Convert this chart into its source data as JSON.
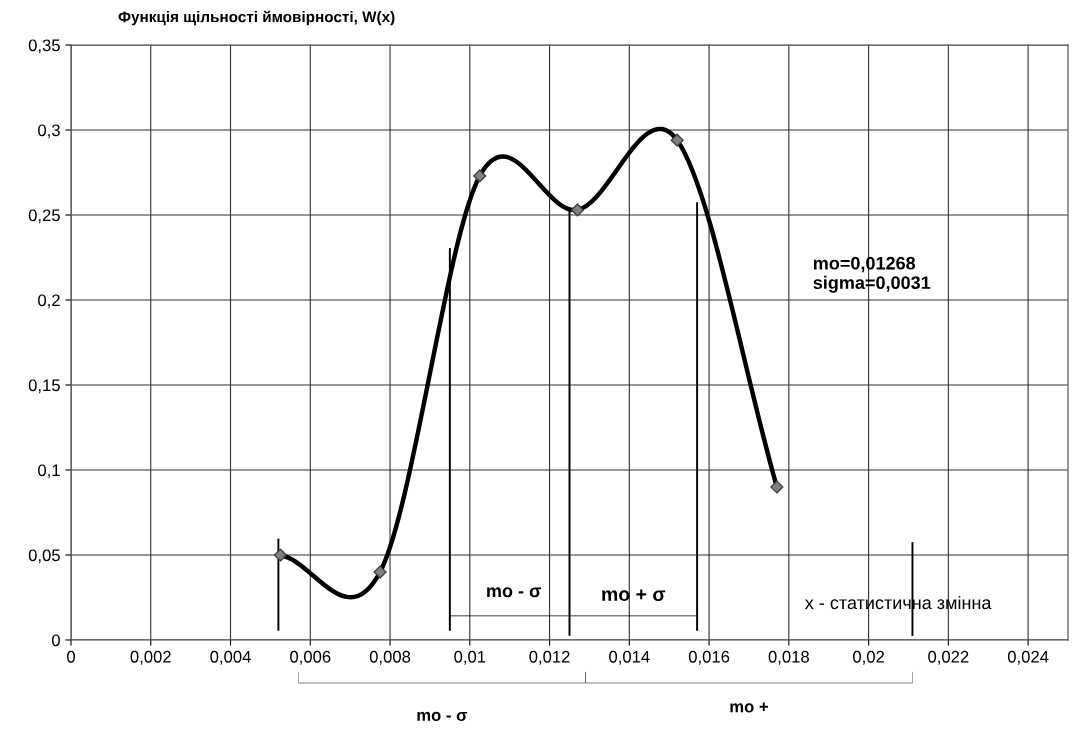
{
  "chart_data": {
    "type": "line",
    "title": "Функція щільності ймовірності, W(x)",
    "xlim": [
      0,
      0.025
    ],
    "ylim": [
      0,
      0.35
    ],
    "xticks": [
      0,
      {
        "value": 0.002,
        "label": "0,002"
      },
      {
        "value": 0.004,
        "label": "0,004"
      },
      {
        "value": 0.006,
        "label": "0,006"
      },
      {
        "value": 0.008,
        "label": "0,008"
      },
      {
        "value": 0.01,
        "label": "0,01"
      },
      {
        "value": 0.012,
        "label": "0,012"
      },
      {
        "value": 0.014,
        "label": "0,014"
      },
      {
        "value": 0.016,
        "label": "0,016"
      },
      {
        "value": 0.018,
        "label": "0,018"
      },
      {
        "value": 0.02,
        "label": "0,02"
      },
      {
        "value": 0.022,
        "label": "0,022"
      },
      {
        "value": 0.024,
        "label": "0,024"
      }
    ],
    "yticks": [
      0,
      {
        "value": 0.05,
        "label": "0,05"
      },
      {
        "value": 0.1,
        "label": "0,1"
      },
      {
        "value": 0.15,
        "label": "0,15"
      },
      {
        "value": 0.2,
        "label": "0,2"
      },
      {
        "value": 0.25,
        "label": "0,25"
      },
      {
        "value": 0.3,
        "label": "0,3"
      },
      {
        "value": 0.35,
        "label": "0,35"
      }
    ],
    "grid": true,
    "legend": false,
    "marker": "diamond",
    "line_style": "solid",
    "series": [
      {
        "color": "#000000",
        "x": [
          0.00525,
          0.00775,
          0.01025,
          0.0127,
          0.0152,
          0.0177
        ],
        "values": [
          0.05,
          0.04,
          0.273,
          0.253,
          0.294,
          0.09
        ]
      },
      {
        "color": "#000000",
        "marker": "none",
        "x": [
          0.0052,
          0.0052
        ],
        "values": [
          0.006,
          0.059
        ]
      },
      {
        "color": "#000000",
        "marker": "none",
        "x": [
          0.0095,
          0.0095
        ],
        "values": [
          0.006,
          0.23
        ]
      },
      {
        "color": "#000000",
        "marker": "none",
        "x": [
          0.0125,
          0.0125
        ],
        "values": [
          0.003,
          0.253
        ]
      },
      {
        "color": "#000000",
        "marker": "none",
        "x": [
          0.0157,
          0.0157
        ],
        "values": [
          0.006,
          0.257
        ]
      },
      {
        "color": "#000000",
        "marker": "none",
        "x": [
          0.0211,
          0.0211
        ],
        "values": [
          0.003,
          0.057
        ]
      }
    ],
    "annotations": [
      "mo - σ",
      "mo + σ",
      "x - статистична змінна",
      "mo=0,01268\nsigma=0,0031",
      "mo - σ",
      "mo +"
    ]
  }
}
